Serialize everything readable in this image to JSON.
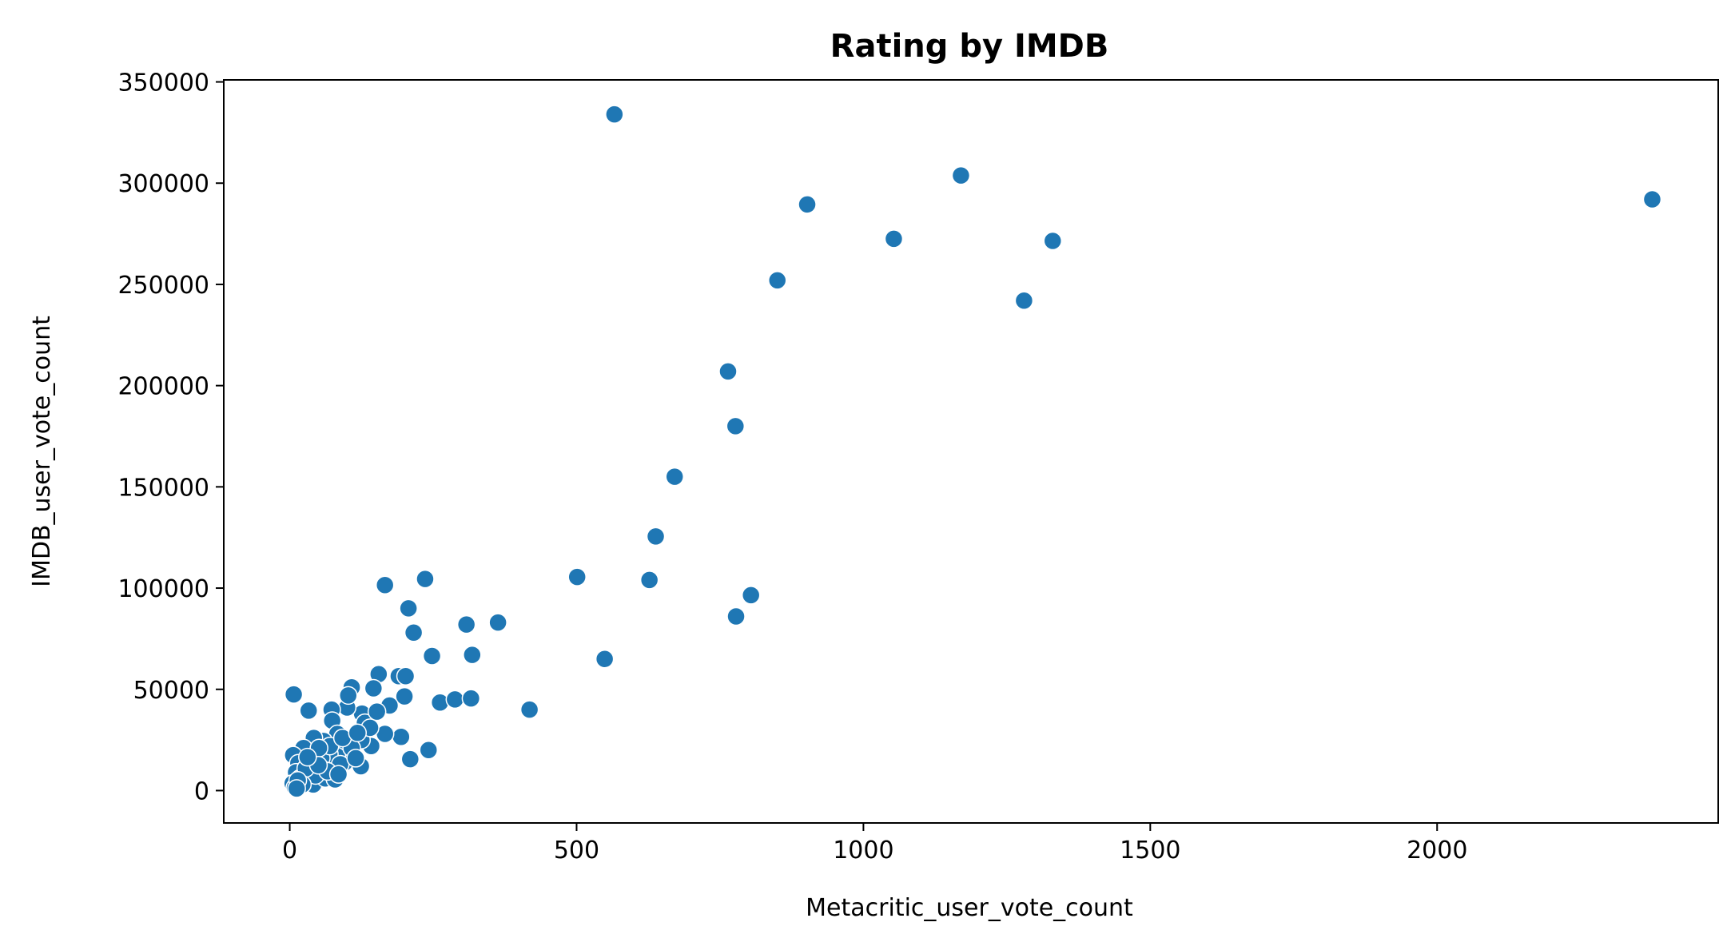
{
  "chart_data": {
    "type": "scatter",
    "title": "Rating by IMDB",
    "xlabel": "Metacritic_user_vote_count",
    "ylabel": "IMDB_user_vote_count",
    "xlim": [
      -115,
      2490
    ],
    "ylim": [
      -16000,
      351000
    ],
    "xticks": [
      0,
      500,
      1000,
      1500,
      2000
    ],
    "yticks": [
      0,
      50000,
      100000,
      150000,
      200000,
      250000,
      300000,
      350000
    ],
    "grid": false,
    "marker_color": "#1f77b4",
    "marker_edge_color": "#ffffff",
    "points": [
      [
        566,
        334000
      ],
      [
        1170,
        303800
      ],
      [
        2375,
        292000
      ],
      [
        902,
        289500
      ],
      [
        1053,
        272500
      ],
      [
        1330,
        271500
      ],
      [
        850,
        252000
      ],
      [
        1280,
        242000
      ],
      [
        764,
        207000
      ],
      [
        777,
        180000
      ],
      [
        671,
        155000
      ],
      [
        638,
        125500
      ],
      [
        804,
        96500
      ],
      [
        778,
        86000
      ],
      [
        501,
        105500
      ],
      [
        627,
        104000
      ],
      [
        549,
        65000
      ],
      [
        418,
        40000
      ],
      [
        363,
        83000
      ],
      [
        308,
        82000
      ],
      [
        318,
        67000
      ],
      [
        236,
        104500
      ],
      [
        166,
        101500
      ],
      [
        207,
        90000
      ],
      [
        216,
        78000
      ],
      [
        248,
        66500
      ],
      [
        155,
        57500
      ],
      [
        190,
        56500
      ],
      [
        202,
        56500
      ],
      [
        146,
        50500
      ],
      [
        108,
        51000
      ],
      [
        200,
        46500
      ],
      [
        174,
        42000
      ],
      [
        262,
        43500
      ],
      [
        288,
        45000
      ],
      [
        316,
        45500
      ],
      [
        242,
        20000
      ],
      [
        210,
        15500
      ],
      [
        194,
        26500
      ],
      [
        166,
        28000
      ],
      [
        142,
        22000
      ],
      [
        124,
        12000
      ],
      [
        134,
        35500
      ],
      [
        126,
        38000
      ],
      [
        131,
        33500
      ],
      [
        100,
        41000
      ],
      [
        102,
        47000
      ],
      [
        73,
        40000
      ],
      [
        74,
        34500
      ],
      [
        33,
        39500
      ],
      [
        7,
        47500
      ],
      [
        83,
        28000
      ],
      [
        59,
        24500
      ],
      [
        42,
        26000
      ],
      [
        125,
        25000
      ],
      [
        94,
        19500
      ],
      [
        96,
        14000
      ],
      [
        82,
        17000
      ],
      [
        69,
        18000
      ],
      [
        48,
        19500
      ],
      [
        24,
        21000
      ],
      [
        6,
        17500
      ],
      [
        15,
        13500
      ],
      [
        35,
        12000
      ],
      [
        55,
        16000
      ],
      [
        30,
        8500
      ],
      [
        11,
        9000
      ],
      [
        18,
        6000
      ],
      [
        25,
        4500
      ],
      [
        5,
        3500
      ],
      [
        9,
        1500
      ],
      [
        20,
        2500
      ],
      [
        41,
        3000
      ],
      [
        62,
        6000
      ],
      [
        79,
        5500
      ],
      [
        88,
        13000
      ],
      [
        108,
        21000
      ],
      [
        115,
        16000
      ],
      [
        140,
        31000
      ],
      [
        152,
        39000
      ],
      [
        60,
        10000
      ],
      [
        45,
        7500
      ],
      [
        70,
        22000
      ],
      [
        37,
        14500
      ],
      [
        28,
        11000
      ],
      [
        22,
        3000
      ],
      [
        14,
        5000
      ],
      [
        51,
        21000
      ],
      [
        66,
        9500
      ],
      [
        92,
        26000
      ],
      [
        118,
        28500
      ],
      [
        85,
        8000
      ],
      [
        50,
        12500
      ],
      [
        12,
        1000
      ],
      [
        31,
        16500
      ]
    ]
  }
}
